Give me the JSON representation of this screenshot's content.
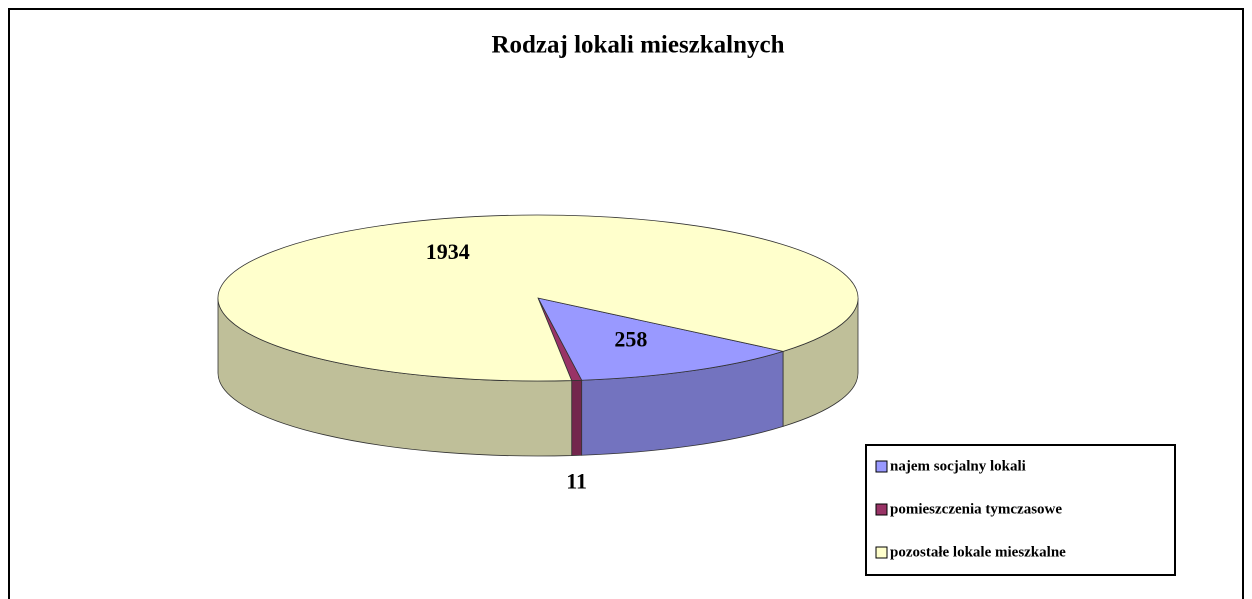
{
  "chart_data": {
    "type": "pie3d",
    "title": "Rodzaj lokali mieszkalnych",
    "categories": [
      "najem socjalny lokali",
      "pomieszczenia tymczasowe",
      "pozostałe lokale mieszkalne"
    ],
    "values": [
      258,
      11,
      1934
    ],
    "colors": [
      "#9999ff",
      "#993366",
      "#ffffcc"
    ],
    "legend": "bottom-right"
  }
}
